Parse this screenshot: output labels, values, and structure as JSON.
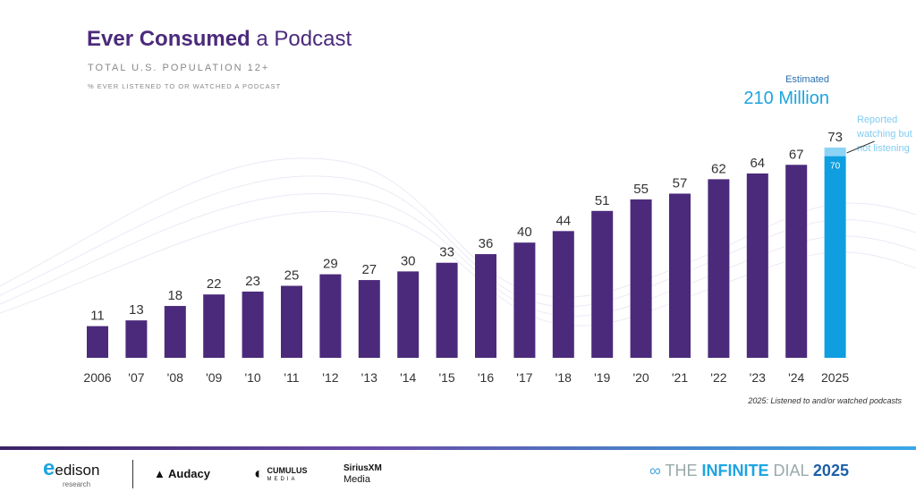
{
  "header": {
    "title_bold": "Ever Consumed",
    "title_rest": " a Podcast",
    "subtitle": "TOTAL U.S. POPULATION 12+",
    "note": "% EVER LISTENED TO OR WATCHED A PODCAST"
  },
  "callout": {
    "estimated": "Estimated",
    "population": "210 Million",
    "annotation": "Reported watching but not listening"
  },
  "footnote": "2025: Listened to and/or watched podcasts",
  "logos": {
    "edison": "edison",
    "edison_sub": "research",
    "audacy": "Audacy",
    "cumulus": "CUMULUS",
    "cumulus_sub": "MEDIA",
    "sirius": "SiriusXM",
    "sirius_sub": "Media",
    "dial_a": "THE ",
    "dial_b": "INFINITE",
    "dial_c": " DIAL",
    "dial_year": "2025"
  },
  "colors": {
    "bar": "#4b2a7b",
    "highlight": "#0f9ee0",
    "highlight_light": "#8dd3f5"
  },
  "chart_data": {
    "type": "bar",
    "categories": [
      "2006",
      "'07",
      "'08",
      "'09",
      "'10",
      "'11",
      "'12",
      "'13",
      "'14",
      "'15",
      "'16",
      "'17",
      "'18",
      "'19",
      "'20",
      "'21",
      "'22",
      "'23",
      "'24",
      "2025"
    ],
    "values": [
      11,
      13,
      18,
      22,
      23,
      25,
      29,
      27,
      30,
      33,
      36,
      40,
      44,
      51,
      55,
      57,
      62,
      64,
      67,
      73
    ],
    "stacked_2025": {
      "listened": 70,
      "watching_not_listening": 3,
      "total": 73
    },
    "ylim": [
      0,
      80
    ],
    "grid": false
  }
}
